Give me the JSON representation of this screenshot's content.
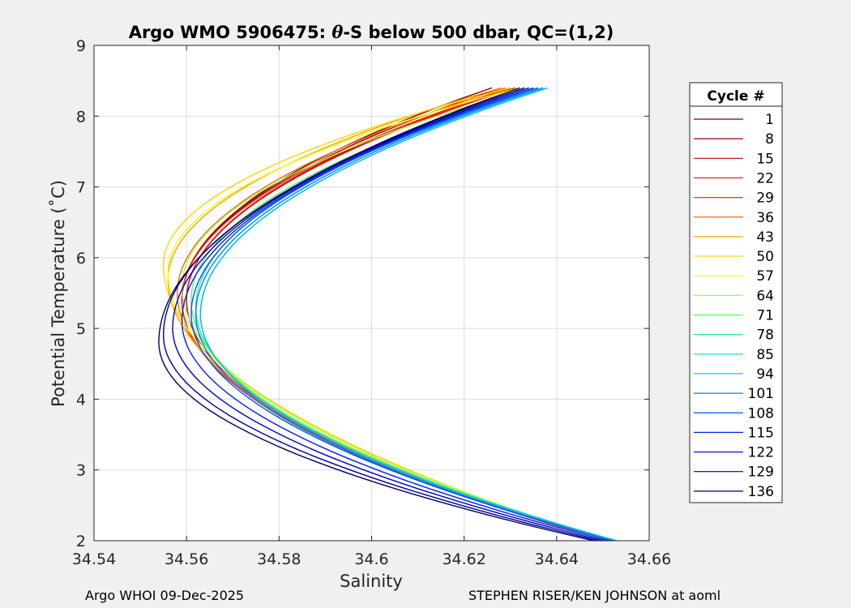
{
  "chart_data": {
    "type": "line",
    "title_prefix": "Argo WMO 5906475: ",
    "title_symbol": "θ",
    "title_suffix": "-S below 500 dbar,  QC=(1,2)",
    "xlabel": "Salinity",
    "ylabel": "Potential Temperature (˚C)",
    "xlim": [
      34.54,
      34.66
    ],
    "ylim": [
      2,
      9
    ],
    "xticks": [
      "34.54",
      "34.56",
      "34.58",
      "34.6",
      "34.62",
      "34.64",
      "34.66"
    ],
    "yticks": [
      "2",
      "3",
      "4",
      "5",
      "6",
      "7",
      "8",
      "9"
    ],
    "grid": true,
    "legend_title": "Cycle #",
    "legend_position": "right, outside",
    "series": [
      {
        "name": "1",
        "color": "#7f0000",
        "s_top": 34.626,
        "t_top": 8.4,
        "s_knee": 34.559,
        "t_knee": 5.4,
        "s_bottom": 34.652,
        "t_bottom": 2.0
      },
      {
        "name": "8",
        "color": "#9a0000",
        "s_top": 34.628,
        "t_top": 8.4,
        "s_knee": 34.559,
        "t_knee": 5.4,
        "s_bottom": 34.652,
        "t_bottom": 2.0
      },
      {
        "name": "15",
        "color": "#c00000",
        "s_top": 34.63,
        "t_top": 8.4,
        "s_knee": 34.56,
        "t_knee": 5.4,
        "s_bottom": 34.652,
        "t_bottom": 2.0
      },
      {
        "name": "22",
        "color": "#e01010",
        "s_top": 34.631,
        "t_top": 8.4,
        "s_knee": 34.56,
        "t_knee": 5.4,
        "s_bottom": 34.651,
        "t_bottom": 2.0
      },
      {
        "name": "29",
        "color": "#ff3000",
        "s_top": 34.63,
        "t_top": 8.4,
        "s_knee": 34.559,
        "t_knee": 5.4,
        "s_bottom": 34.651,
        "t_bottom": 2.0
      },
      {
        "name": "36",
        "color": "#ff6a00",
        "s_top": 34.629,
        "t_top": 8.4,
        "s_knee": 34.558,
        "t_knee": 5.5,
        "s_bottom": 34.651,
        "t_bottom": 2.0
      },
      {
        "name": "43",
        "color": "#ffa000",
        "s_top": 34.628,
        "t_top": 8.4,
        "s_knee": 34.556,
        "t_knee": 5.7,
        "s_bottom": 34.651,
        "t_bottom": 2.0
      },
      {
        "name": "50",
        "color": "#ffd500",
        "s_top": 34.63,
        "t_top": 8.4,
        "s_knee": 34.555,
        "t_knee": 5.9,
        "s_bottom": 34.651,
        "t_bottom": 2.0
      },
      {
        "name": "57",
        "color": "#f0ff00",
        "s_top": 34.632,
        "t_top": 8.4,
        "s_knee": 34.556,
        "t_knee": 5.8,
        "s_bottom": 34.651,
        "t_bottom": 2.0
      },
      {
        "name": "64",
        "color": "#a0ff40",
        "s_top": 34.634,
        "t_top": 8.4,
        "s_knee": 34.559,
        "t_knee": 5.6,
        "s_bottom": 34.652,
        "t_bottom": 2.0
      },
      {
        "name": "71",
        "color": "#50ff60",
        "s_top": 34.636,
        "t_top": 8.4,
        "s_knee": 34.561,
        "t_knee": 5.4,
        "s_bottom": 34.652,
        "t_bottom": 2.0
      },
      {
        "name": "78",
        "color": "#20f0a0",
        "s_top": 34.637,
        "t_top": 8.4,
        "s_knee": 34.562,
        "t_knee": 5.3,
        "s_bottom": 34.653,
        "t_bottom": 2.0
      },
      {
        "name": "85",
        "color": "#00e0d0",
        "s_top": 34.638,
        "t_top": 8.4,
        "s_knee": 34.563,
        "t_knee": 5.2,
        "s_bottom": 34.653,
        "t_bottom": 2.0
      },
      {
        "name": "94",
        "color": "#00b8ff",
        "s_top": 34.638,
        "t_top": 8.4,
        "s_knee": 34.563,
        "t_knee": 5.2,
        "s_bottom": 34.653,
        "t_bottom": 2.0
      },
      {
        "name": "101",
        "color": "#0080ff",
        "s_top": 34.637,
        "t_top": 8.4,
        "s_knee": 34.562,
        "t_knee": 5.2,
        "s_bottom": 34.652,
        "t_bottom": 2.0
      },
      {
        "name": "108",
        "color": "#0050ff",
        "s_top": 34.636,
        "t_top": 8.4,
        "s_knee": 34.561,
        "t_knee": 5.2,
        "s_bottom": 34.652,
        "t_bottom": 2.0
      },
      {
        "name": "115",
        "color": "#0020f0",
        "s_top": 34.635,
        "t_top": 8.4,
        "s_knee": 34.559,
        "t_knee": 5.1,
        "s_bottom": 34.651,
        "t_bottom": 2.0
      },
      {
        "name": "122",
        "color": "#0000c8",
        "s_top": 34.634,
        "t_top": 8.4,
        "s_knee": 34.557,
        "t_knee": 5.0,
        "s_bottom": 34.65,
        "t_bottom": 2.0
      },
      {
        "name": "129",
        "color": "#000090",
        "s_top": 34.633,
        "t_top": 8.4,
        "s_knee": 34.555,
        "t_knee": 4.9,
        "s_bottom": 34.649,
        "t_bottom": 2.0
      },
      {
        "name": "136",
        "color": "#000060",
        "s_top": 34.632,
        "t_top": 8.4,
        "s_knee": 34.554,
        "t_knee": 4.8,
        "s_bottom": 34.648,
        "t_bottom": 2.0
      }
    ]
  },
  "footer": {
    "left": "Argo WHOI 09-Dec-2025",
    "right": "STEPHEN RISER/KEN JOHNSON at aoml"
  }
}
